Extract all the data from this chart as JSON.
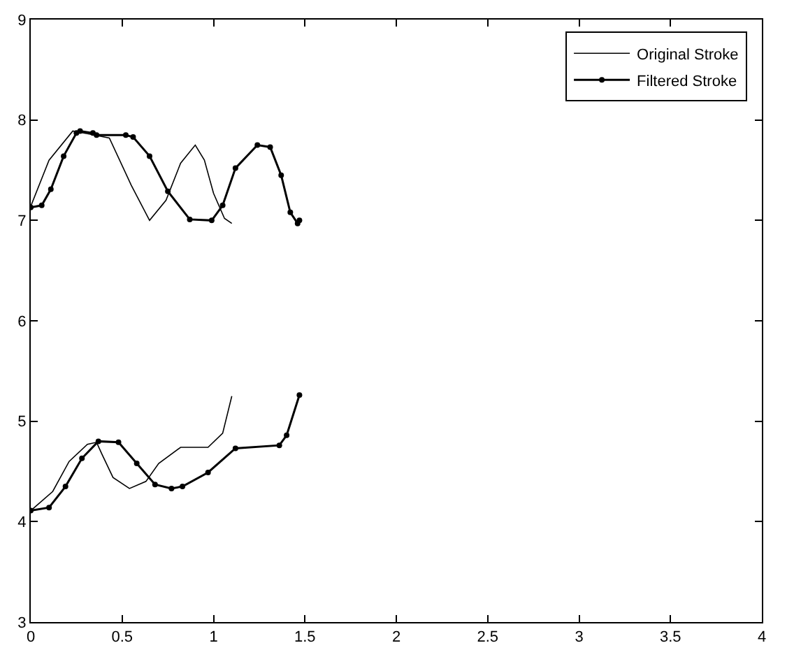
{
  "chart_data": {
    "type": "line",
    "xlim": [
      0,
      4
    ],
    "xticks": [
      0,
      0.5,
      1,
      1.5,
      2,
      2.5,
      3,
      3.5,
      4
    ],
    "ylim": [
      3,
      9
    ],
    "yticks": [
      3,
      4,
      5,
      6,
      7,
      8,
      9
    ],
    "grid": false,
    "legend": "top right",
    "line_style": "solid",
    "series": [
      {
        "name": "Original Stroke",
        "color": "#000000",
        "marker": "none",
        "x": [
          0,
          0.1,
          0.23,
          0.32,
          0.43,
          0.55,
          0.65,
          0.74,
          0.82,
          0.9,
          0.95,
          1.0,
          1.06,
          1.1,
          null,
          0,
          0.12,
          0.21,
          0.31,
          0.36,
          0.39,
          0.45,
          0.54,
          0.63,
          0.7,
          0.82,
          0.97,
          1.05,
          1.1
        ],
        "values": [
          7.14,
          7.6,
          7.89,
          7.86,
          7.82,
          7.35,
          7.0,
          7.2,
          7.57,
          7.75,
          7.6,
          7.27,
          7.02,
          6.97,
          null,
          4.11,
          4.3,
          4.6,
          4.77,
          4.79,
          4.67,
          4.44,
          4.33,
          4.4,
          4.58,
          4.74,
          4.74,
          4.88,
          5.25
        ]
      },
      {
        "name": "Filtered Stroke",
        "color": "#000000",
        "marker": "circle",
        "x": [
          0,
          0.06,
          0.11,
          0.18,
          0.25,
          0.27,
          0.34,
          0.36,
          0.52,
          0.56,
          0.65,
          0.75,
          0.87,
          0.99,
          1.05,
          1.12,
          1.24,
          1.31,
          1.37,
          1.42,
          1.46,
          1.47,
          null,
          0,
          0.1,
          0.19,
          0.28,
          0.37,
          0.48,
          0.58,
          0.68,
          0.77,
          0.83,
          0.97,
          1.12,
          1.36,
          1.4,
          1.47
        ],
        "values": [
          7.13,
          7.15,
          7.31,
          7.64,
          7.87,
          7.89,
          7.87,
          7.85,
          7.85,
          7.83,
          7.64,
          7.29,
          7.01,
          7.0,
          7.15,
          7.52,
          7.75,
          7.73,
          7.45,
          7.08,
          6.97,
          7.0,
          null,
          4.11,
          4.14,
          4.35,
          4.63,
          4.8,
          4.79,
          4.58,
          4.37,
          4.33,
          4.35,
          4.49,
          4.73,
          4.76,
          4.86,
          5.26
        ]
      }
    ]
  }
}
